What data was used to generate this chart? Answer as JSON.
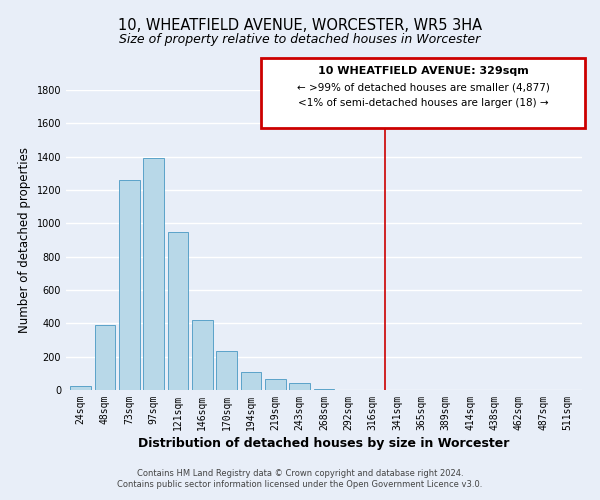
{
  "title": "10, WHEATFIELD AVENUE, WORCESTER, WR5 3HA",
  "subtitle": "Size of property relative to detached houses in Worcester",
  "xlabel": "Distribution of detached houses by size in Worcester",
  "ylabel": "Number of detached properties",
  "bar_labels": [
    "24sqm",
    "48sqm",
    "73sqm",
    "97sqm",
    "121sqm",
    "146sqm",
    "170sqm",
    "194sqm",
    "219sqm",
    "243sqm",
    "268sqm",
    "292sqm",
    "316sqm",
    "341sqm",
    "365sqm",
    "389sqm",
    "414sqm",
    "438sqm",
    "462sqm",
    "487sqm",
    "511sqm"
  ],
  "bar_values": [
    25,
    390,
    1260,
    1395,
    950,
    420,
    235,
    110,
    65,
    45,
    5,
    0,
    0,
    0,
    0,
    0,
    0,
    0,
    0,
    0,
    0
  ],
  "bar_color": "#b8d8e8",
  "bar_edge_color": "#5ba3c9",
  "property_line_x": 12.5,
  "property_line_color": "#cc0000",
  "ylim": [
    0,
    1800
  ],
  "yticks": [
    0,
    200,
    400,
    600,
    800,
    1000,
    1200,
    1400,
    1600,
    1800
  ],
  "annotation_title": "10 WHEATFIELD AVENUE: 329sqm",
  "annotation_line1": "← >99% of detached houses are smaller (4,877)",
  "annotation_line2": "<1% of semi-detached houses are larger (18) →",
  "annotation_box_color": "#ffffff",
  "annotation_box_edge": "#cc0000",
  "footnote1": "Contains HM Land Registry data © Crown copyright and database right 2024.",
  "footnote2": "Contains public sector information licensed under the Open Government Licence v3.0.",
  "background_color": "#e8eef8",
  "grid_color": "#ffffff",
  "title_fontsize": 10.5,
  "subtitle_fontsize": 9,
  "xlabel_fontsize": 9,
  "ylabel_fontsize": 8.5,
  "tick_fontsize": 7
}
